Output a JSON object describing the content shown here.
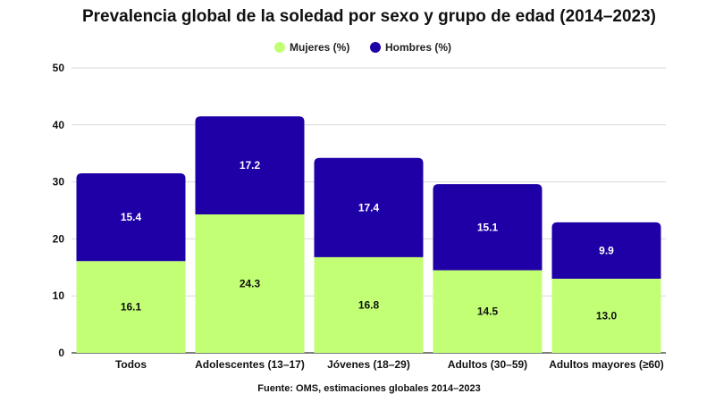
{
  "chart_data": {
    "type": "bar",
    "stacked": true,
    "title": "Prevalencia global de la soledad por sexo y grupo de edad (2014–2023)",
    "categories": [
      "Todos",
      "Adolescentes (13–17)",
      "Jóvenes (18–29)",
      "Adultos (30–59)",
      "Adultos mayores (≥60)"
    ],
    "series": [
      {
        "name": "Mujeres (%)",
        "color": "#c2ff75",
        "label_color": "#111111",
        "values": [
          16.1,
          24.3,
          16.8,
          14.5,
          13.0
        ]
      },
      {
        "name": "Hombres (%)",
        "color": "#1e00a6",
        "label_color": "#ffffff",
        "values": [
          15.4,
          17.2,
          17.4,
          15.1,
          9.9
        ]
      }
    ],
    "ylim": [
      0,
      50
    ],
    "yticks": [
      0,
      10,
      20,
      30,
      40,
      50
    ],
    "grid": true,
    "legend_position": "top-center",
    "source": "Fuente: OMS, estimaciones globales 2014–2023"
  }
}
